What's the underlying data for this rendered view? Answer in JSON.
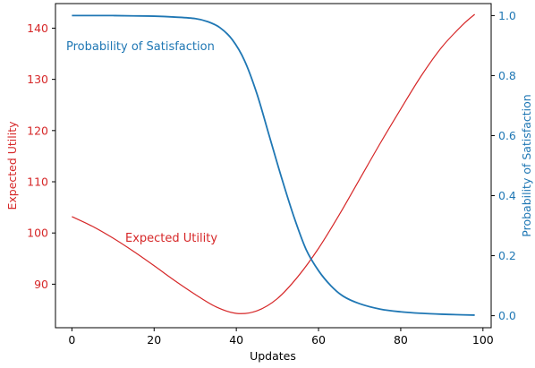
{
  "chart_data": {
    "type": "line",
    "title": "",
    "xlabel": "Updates",
    "ylabel_left": "Expected Utility",
    "ylabel_right": "Probability of Satisfaction",
    "xlim": [
      -4,
      102
    ],
    "ylim_left": [
      81.5,
      144.8
    ],
    "ylim_right": [
      -0.04,
      1.04
    ],
    "x_ticks": [
      0,
      20,
      40,
      60,
      80,
      100
    ],
    "y_left_ticks": [
      90,
      100,
      110,
      120,
      130,
      140
    ],
    "y_right_ticks": [
      0.0,
      0.2,
      0.4,
      0.6,
      0.8,
      1.0
    ],
    "y_right_tick_labels": [
      "0.0",
      "0.2",
      "0.4",
      "0.6",
      "0.8",
      "1.0"
    ],
    "grid": false,
    "legend": "none",
    "colors": {
      "left": "#d62728",
      "right": "#1f77b4"
    },
    "series": [
      {
        "name": "Expected Utility",
        "axis": "left",
        "x": [
          0,
          5,
          10,
          15,
          20,
          25,
          30,
          35,
          40,
          45,
          50,
          55,
          60,
          65,
          70,
          75,
          80,
          85,
          90,
          95,
          98
        ],
        "values": [
          103.2,
          101.3,
          99.0,
          96.4,
          93.6,
          90.7,
          88.0,
          85.6,
          84.3,
          84.8,
          87.2,
          91.5,
          97.0,
          103.5,
          110.5,
          117.5,
          124.2,
          130.7,
          136.3,
          140.6,
          142.7
        ]
      },
      {
        "name": "Probability of Satisfaction",
        "axis": "right",
        "x": [
          0,
          5,
          10,
          15,
          20,
          25,
          30,
          33,
          36,
          39,
          42,
          45,
          48,
          51,
          54,
          57,
          60,
          63,
          66,
          70,
          75,
          80,
          85,
          90,
          95,
          98
        ],
        "values": [
          1.0,
          1.0,
          1.0,
          0.999,
          0.998,
          0.995,
          0.99,
          0.98,
          0.96,
          0.92,
          0.85,
          0.74,
          0.6,
          0.46,
          0.33,
          0.22,
          0.15,
          0.1,
          0.065,
          0.04,
          0.022,
          0.013,
          0.008,
          0.005,
          0.003,
          0.002
        ]
      }
    ],
    "annotations": [
      {
        "text": "Probability of Satisfaction",
        "color": "#1f77b4"
      },
      {
        "text": "Expected Utility",
        "color": "#d62728"
      }
    ]
  }
}
